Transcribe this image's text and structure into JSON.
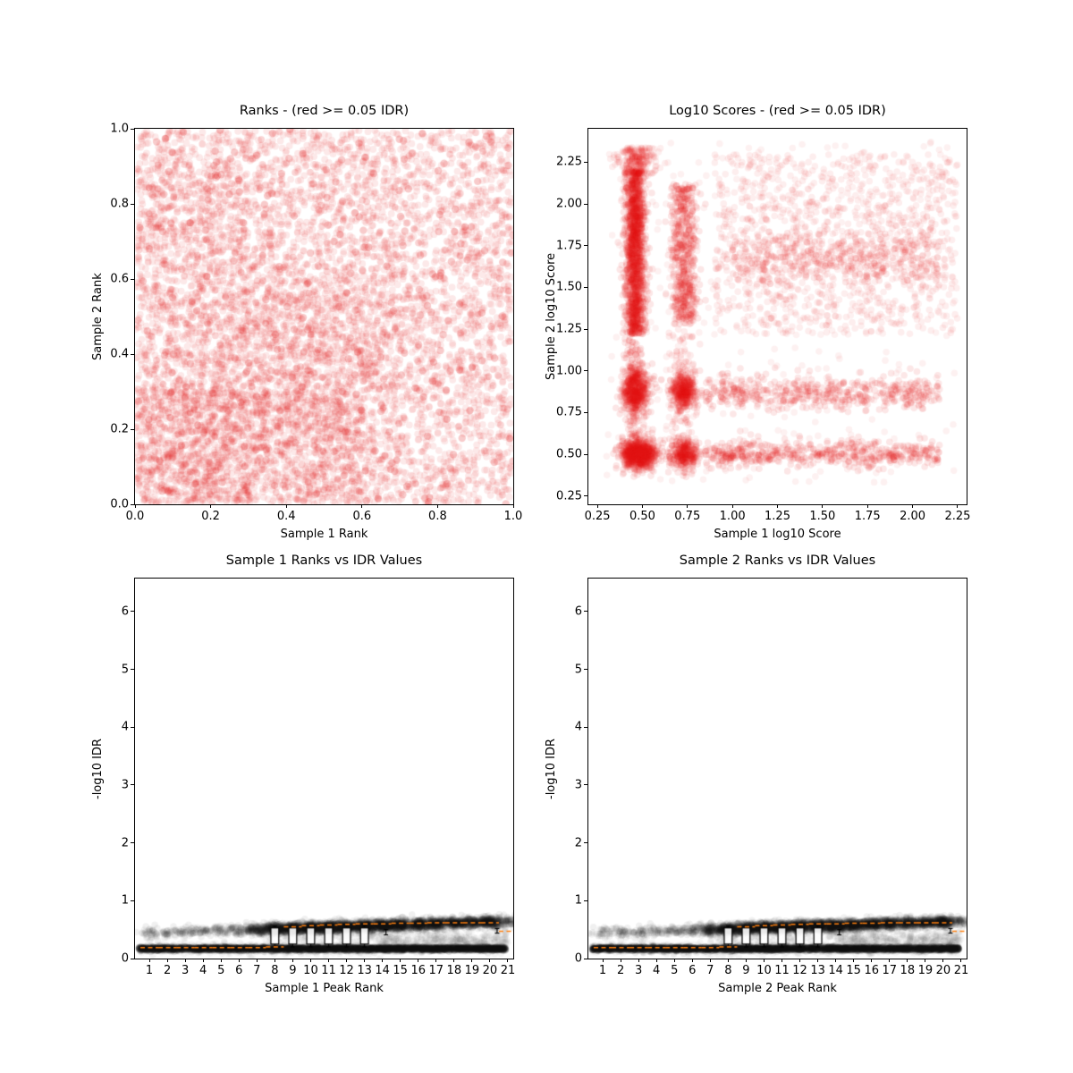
{
  "figure": {
    "background": "#ffffff",
    "scatter_red": "#e01010",
    "scatter_black": "#000000",
    "median_orange": "#ff7f0e"
  },
  "chart_data": [
    {
      "id": "rank-scatter",
      "type": "scatter",
      "title": "Ranks - (red >= 0.05 IDR)",
      "xlabel": "Sample 1 Rank",
      "ylabel": "Sample 2 Rank",
      "xlim": [
        0,
        1
      ],
      "ylim": [
        0,
        1
      ],
      "xticks": [
        0.0,
        0.2,
        0.4,
        0.6,
        0.8,
        1.0
      ],
      "xtick_labels": [
        "0.0",
        "0.2",
        "0.4",
        "0.6",
        "0.8",
        "1.0"
      ],
      "yticks": [
        0.0,
        0.2,
        0.4,
        0.6,
        0.8,
        1.0
      ],
      "ytick_labels": [
        "0.0",
        "0.2",
        "0.4",
        "0.6",
        "0.8",
        "1.0"
      ],
      "seed": 42,
      "default": {
        "color": "#e01010",
        "alpha": 0.09,
        "r": 3.9
      },
      "components": [
        {
          "n": 5200,
          "x": [
            "u",
            0.004,
            0.996
          ],
          "y": [
            "u",
            0.004,
            0.996
          ]
        },
        {
          "n": 900,
          "x": [
            "u",
            0.0,
            0.6
          ],
          "y": [
            "u",
            0.0,
            0.3
          ]
        },
        {
          "n": 600,
          "x": [
            "u",
            0.0,
            0.3
          ],
          "y": [
            "u",
            0.0,
            0.9
          ]
        },
        {
          "n": 700,
          "x": [
            "n",
            0.45,
            0.14
          ],
          "y": [
            "n",
            0.42,
            0.14
          ]
        },
        {
          "n": 260,
          "x": [
            "u",
            0.0,
            1.0
          ],
          "y": [
            "u",
            0.0,
            1.0
          ],
          "alpha": 0.22,
          "r": 4.2
        }
      ]
    },
    {
      "id": "score-scatter",
      "type": "scatter",
      "title": "Log10 Scores - (red >= 0.05 IDR)",
      "xlabel": "Sample 1 log10 Score",
      "ylabel": "Sample 2 log10 Score",
      "xlim": [
        0.2,
        2.3
      ],
      "ylim": [
        0.2,
        2.45
      ],
      "xticks": [
        0.25,
        0.5,
        0.75,
        1.0,
        1.25,
        1.5,
        1.75,
        2.0,
        2.25
      ],
      "xtick_labels": [
        "0.25",
        "0.50",
        "0.75",
        "1.00",
        "1.25",
        "1.50",
        "1.75",
        "2.00",
        "2.25"
      ],
      "yticks": [
        0.25,
        0.5,
        0.75,
        1.0,
        1.25,
        1.5,
        1.75,
        2.0,
        2.25
      ],
      "ytick_labels": [
        "0.25",
        "0.50",
        "0.75",
        "1.00",
        "1.25",
        "1.50",
        "1.75",
        "2.00",
        "2.25"
      ],
      "seed": 7,
      "default": {
        "color": "#e01010",
        "alpha": 0.1,
        "r": 3.8
      },
      "components": [
        {
          "n": 1500,
          "x": [
            "n",
            0.46,
            0.028
          ],
          "y": [
            "u",
            1.22,
            2.2
          ]
        },
        {
          "n": 260,
          "x": [
            "n",
            0.47,
            0.05
          ],
          "y": [
            "u",
            2.18,
            2.34
          ],
          "alpha": 0.07
        },
        {
          "n": 520,
          "x": [
            "n",
            0.46,
            0.035
          ],
          "y": [
            "n",
            0.88,
            0.07
          ]
        },
        {
          "n": 780,
          "x": [
            "n",
            0.48,
            0.05
          ],
          "y": [
            "n",
            0.5,
            0.045
          ]
        },
        {
          "n": 560,
          "x": [
            "n",
            0.73,
            0.035
          ],
          "y": [
            "u",
            1.28,
            2.12
          ]
        },
        {
          "n": 380,
          "x": [
            "n",
            0.73,
            0.035
          ],
          "y": [
            "n",
            0.88,
            0.06
          ]
        },
        {
          "n": 330,
          "x": [
            "n",
            0.73,
            0.04
          ],
          "y": [
            "n",
            0.5,
            0.045
          ]
        },
        {
          "n": 520,
          "x": [
            "u",
            0.85,
            2.15
          ],
          "y": [
            "n",
            0.87,
            0.05
          ]
        },
        {
          "n": 560,
          "x": [
            "u",
            0.85,
            2.15
          ],
          "y": [
            "n",
            0.5,
            0.04
          ]
        },
        {
          "n": 1150,
          "x": [
            "u",
            0.9,
            2.25
          ],
          "y": [
            "u",
            1.22,
            2.3
          ],
          "alpha": 0.07
        },
        {
          "n": 380,
          "x": [
            "u",
            1.0,
            2.15
          ],
          "y": [
            "n",
            1.68,
            0.09
          ]
        },
        {
          "n": 360,
          "x": [
            "u",
            0.3,
            2.25
          ],
          "y": [
            "u",
            0.33,
            2.38
          ],
          "alpha": 0.06
        },
        {
          "n": 120,
          "x": [
            "n",
            0.46,
            0.03
          ],
          "y": [
            "u",
            0.6,
            1.2
          ]
        },
        {
          "n": 90,
          "x": [
            "n",
            0.73,
            0.04
          ],
          "y": [
            "u",
            0.6,
            1.25
          ],
          "alpha": 0.08
        }
      ]
    },
    {
      "id": "sample1-idr",
      "type": "scatter",
      "title": "Sample 1 Ranks vs IDR Values",
      "xlabel": "Sample 1 Peak Rank",
      "ylabel": "-log10 IDR",
      "xlim": [
        0.2,
        21.3
      ],
      "ylim": [
        0,
        6.57
      ],
      "xticks": [
        1,
        2,
        3,
        4,
        5,
        6,
        7,
        8,
        9,
        10,
        11,
        12,
        13,
        14,
        15,
        16,
        17,
        18,
        19,
        20,
        21
      ],
      "xtick_labels": [
        "1",
        "2",
        "3",
        "4",
        "5",
        "6",
        "7",
        "8",
        "9",
        "10",
        "11",
        "12",
        "13",
        "14",
        "15",
        "16",
        "17",
        "18",
        "19",
        "20",
        "21"
      ],
      "yticks": [
        0,
        1,
        2,
        3,
        4,
        5,
        6
      ],
      "ytick_labels": [
        "0",
        "1",
        "2",
        "3",
        "4",
        "5",
        "6"
      ],
      "seed": 13,
      "default": {
        "color": "#000000",
        "alpha": 0.06,
        "r": 3.8
      },
      "components": [
        {
          "n": 4200,
          "x": [
            "u",
            0.4,
            20.9
          ],
          "y": [
            "n",
            0.17,
            0.018
          ],
          "alpha": 0.07
        },
        {
          "n": 700,
          "x": [
            "u",
            0.4,
            20.9
          ],
          "y": [
            "n",
            0.17,
            0.045
          ],
          "alpha": 0.04
        },
        {
          "n": 320,
          "x": [
            "u",
            7,
            21
          ],
          "y": [
            "n",
            0.38,
            0.07
          ],
          "alpha": 0.03
        },
        {
          "n": 200,
          "x": [
            "u",
            14,
            21
          ],
          "y": [
            "n",
            0.3,
            0.05
          ],
          "alpha": 0.03
        }
      ],
      "rank_clouds": {
        "ns": [
          35,
          35,
          40,
          40,
          45,
          55,
          150,
          290,
          330,
          340,
          340,
          340,
          330,
          320,
          290,
          260,
          240,
          220,
          210,
          270,
          70
        ],
        "y0": 0.43,
        "dy": 0.01,
        "x_sd": 0.33,
        "y_sd": 0.045,
        "alpha": 0.06
      },
      "boxplot": {
        "box_color": "#000000",
        "median_color": "#ff7f0e",
        "box_halfwidth": 0.22,
        "cap_halfwidth": 0.12,
        "median_halfwidth": 0.5,
        "boxes": [
          {
            "x": 8,
            "lo": 0.25,
            "hi": 0.53,
            "wlo": 0.2,
            "whi": 0.56
          },
          {
            "x": 9,
            "lo": 0.25,
            "hi": 0.53,
            "wlo": 0.2,
            "whi": 0.56
          },
          {
            "x": 10,
            "lo": 0.25,
            "hi": 0.53,
            "wlo": 0.2,
            "whi": 0.56
          },
          {
            "x": 11,
            "lo": 0.25,
            "hi": 0.53,
            "wlo": 0.2,
            "whi": 0.56
          },
          {
            "x": 12,
            "lo": 0.25,
            "hi": 0.53,
            "wlo": 0.2,
            "whi": 0.56
          },
          {
            "x": 13,
            "lo": 0.25,
            "hi": 0.53,
            "wlo": 0.2,
            "whi": 0.56
          }
        ],
        "errorbars": [
          {
            "x": 14.2,
            "lo": 0.41,
            "hi": 0.5
          },
          {
            "x": 20.4,
            "lo": 0.44,
            "hi": 0.52
          }
        ],
        "medians": [
          {
            "x": 1,
            "y": 0.19
          },
          {
            "x": 2,
            "y": 0.19
          },
          {
            "x": 3,
            "y": 0.19
          },
          {
            "x": 4,
            "y": 0.19
          },
          {
            "x": 5,
            "y": 0.19
          },
          {
            "x": 6,
            "y": 0.19
          },
          {
            "x": 7,
            "y": 0.19
          },
          {
            "x": 8,
            "y": 0.2
          },
          {
            "x": 9,
            "y": 0.55
          },
          {
            "x": 10,
            "y": 0.57
          },
          {
            "x": 11,
            "y": 0.58
          },
          {
            "x": 12,
            "y": 0.59
          },
          {
            "x": 13,
            "y": 0.6
          },
          {
            "x": 14,
            "y": 0.6
          },
          {
            "x": 15,
            "y": 0.61
          },
          {
            "x": 16,
            "y": 0.61
          },
          {
            "x": 17,
            "y": 0.62
          },
          {
            "x": 18,
            "y": 0.62
          },
          {
            "x": 19,
            "y": 0.62
          },
          {
            "x": 20,
            "y": 0.62
          },
          {
            "x": 21,
            "y": 0.47
          }
        ]
      }
    },
    {
      "id": "sample2-idr",
      "type": "scatter",
      "title": "Sample 2 Ranks vs IDR Values",
      "xlabel": "Sample 2 Peak Rank",
      "ylabel": "-log10 IDR",
      "xlim": [
        0.2,
        21.3
      ],
      "ylim": [
        0,
        6.57
      ],
      "xticks": [
        1,
        2,
        3,
        4,
        5,
        6,
        7,
        8,
        9,
        10,
        11,
        12,
        13,
        14,
        15,
        16,
        17,
        18,
        19,
        20,
        21
      ],
      "xtick_labels": [
        "1",
        "2",
        "3",
        "4",
        "5",
        "6",
        "7",
        "8",
        "9",
        "10",
        "11",
        "12",
        "13",
        "14",
        "15",
        "16",
        "17",
        "18",
        "19",
        "20",
        "21"
      ],
      "yticks": [
        0,
        1,
        2,
        3,
        4,
        5,
        6
      ],
      "ytick_labels": [
        "0",
        "1",
        "2",
        "3",
        "4",
        "5",
        "6"
      ],
      "seed": 99,
      "default": {
        "color": "#000000",
        "alpha": 0.06,
        "r": 3.8
      },
      "components": [
        {
          "n": 4200,
          "x": [
            "u",
            0.4,
            20.9
          ],
          "y": [
            "n",
            0.17,
            0.018
          ],
          "alpha": 0.07
        },
        {
          "n": 700,
          "x": [
            "u",
            0.4,
            20.9
          ],
          "y": [
            "n",
            0.17,
            0.045
          ],
          "alpha": 0.04
        },
        {
          "n": 320,
          "x": [
            "u",
            7,
            21
          ],
          "y": [
            "n",
            0.38,
            0.07
          ],
          "alpha": 0.03
        },
        {
          "n": 200,
          "x": [
            "u",
            14,
            21
          ],
          "y": [
            "n",
            0.3,
            0.05
          ],
          "alpha": 0.03
        }
      ],
      "rank_clouds": {
        "ns": [
          35,
          35,
          40,
          40,
          45,
          55,
          150,
          290,
          330,
          340,
          340,
          340,
          330,
          320,
          290,
          260,
          240,
          220,
          210,
          270,
          70
        ],
        "y0": 0.43,
        "dy": 0.01,
        "x_sd": 0.33,
        "y_sd": 0.045,
        "alpha": 0.06
      },
      "boxplot": {
        "box_color": "#000000",
        "median_color": "#ff7f0e",
        "box_halfwidth": 0.22,
        "cap_halfwidth": 0.12,
        "median_halfwidth": 0.5,
        "boxes": [
          {
            "x": 8,
            "lo": 0.25,
            "hi": 0.53,
            "wlo": 0.2,
            "whi": 0.56
          },
          {
            "x": 9,
            "lo": 0.25,
            "hi": 0.53,
            "wlo": 0.2,
            "whi": 0.56
          },
          {
            "x": 10,
            "lo": 0.25,
            "hi": 0.53,
            "wlo": 0.2,
            "whi": 0.56
          },
          {
            "x": 11,
            "lo": 0.25,
            "hi": 0.53,
            "wlo": 0.2,
            "whi": 0.56
          },
          {
            "x": 12,
            "lo": 0.25,
            "hi": 0.53,
            "wlo": 0.2,
            "whi": 0.56
          },
          {
            "x": 13,
            "lo": 0.25,
            "hi": 0.53,
            "wlo": 0.2,
            "whi": 0.56
          }
        ],
        "errorbars": [
          {
            "x": 14.2,
            "lo": 0.41,
            "hi": 0.5
          },
          {
            "x": 20.4,
            "lo": 0.44,
            "hi": 0.52
          }
        ],
        "medians": [
          {
            "x": 1,
            "y": 0.19
          },
          {
            "x": 2,
            "y": 0.19
          },
          {
            "x": 3,
            "y": 0.19
          },
          {
            "x": 4,
            "y": 0.19
          },
          {
            "x": 5,
            "y": 0.19
          },
          {
            "x": 6,
            "y": 0.19
          },
          {
            "x": 7,
            "y": 0.19
          },
          {
            "x": 8,
            "y": 0.2
          },
          {
            "x": 9,
            "y": 0.55
          },
          {
            "x": 10,
            "y": 0.57
          },
          {
            "x": 11,
            "y": 0.58
          },
          {
            "x": 12,
            "y": 0.59
          },
          {
            "x": 13,
            "y": 0.6
          },
          {
            "x": 14,
            "y": 0.6
          },
          {
            "x": 15,
            "y": 0.61
          },
          {
            "x": 16,
            "y": 0.61
          },
          {
            "x": 17,
            "y": 0.62
          },
          {
            "x": 18,
            "y": 0.62
          },
          {
            "x": 19,
            "y": 0.62
          },
          {
            "x": 20,
            "y": 0.62
          },
          {
            "x": 21,
            "y": 0.47
          }
        ]
      }
    }
  ]
}
